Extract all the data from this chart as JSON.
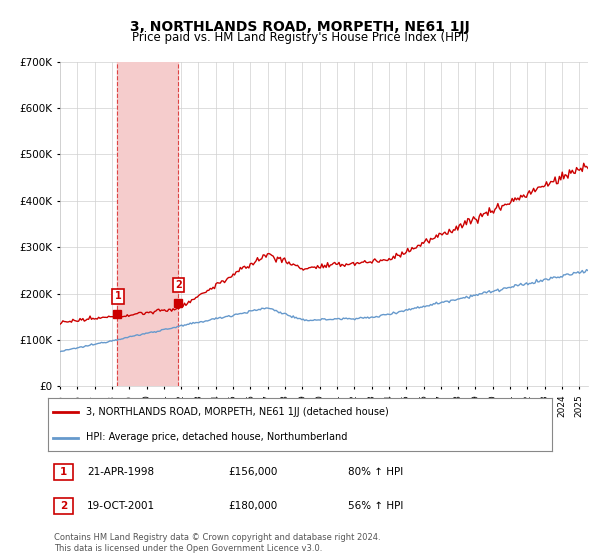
{
  "title": "3, NORTHLANDS ROAD, MORPETH, NE61 1JJ",
  "subtitle": "Price paid vs. HM Land Registry's House Price Index (HPI)",
  "legend_line1": "3, NORTHLANDS ROAD, MORPETH, NE61 1JJ (detached house)",
  "legend_line2": "HPI: Average price, detached house, Northumberland",
  "sale1_label": "1",
  "sale1_date": "21-APR-1998",
  "sale1_price": "£156,000",
  "sale1_hpi": "80% ↑ HPI",
  "sale1_year": 1998.3,
  "sale1_value": 156000,
  "sale2_label": "2",
  "sale2_date": "19-OCT-2001",
  "sale2_price": "£180,000",
  "sale2_hpi": "56% ↑ HPI",
  "sale2_year": 2001.8,
  "sale2_value": 180000,
  "red_line_color": "#cc0000",
  "blue_line_color": "#6699cc",
  "shade_color": "#f5cccc",
  "ylim": [
    0,
    700000
  ],
  "xlim_start": 1995,
  "xlim_end": 2025.5,
  "footer": "Contains HM Land Registry data © Crown copyright and database right 2024.\nThis data is licensed under the Open Government Licence v3.0."
}
